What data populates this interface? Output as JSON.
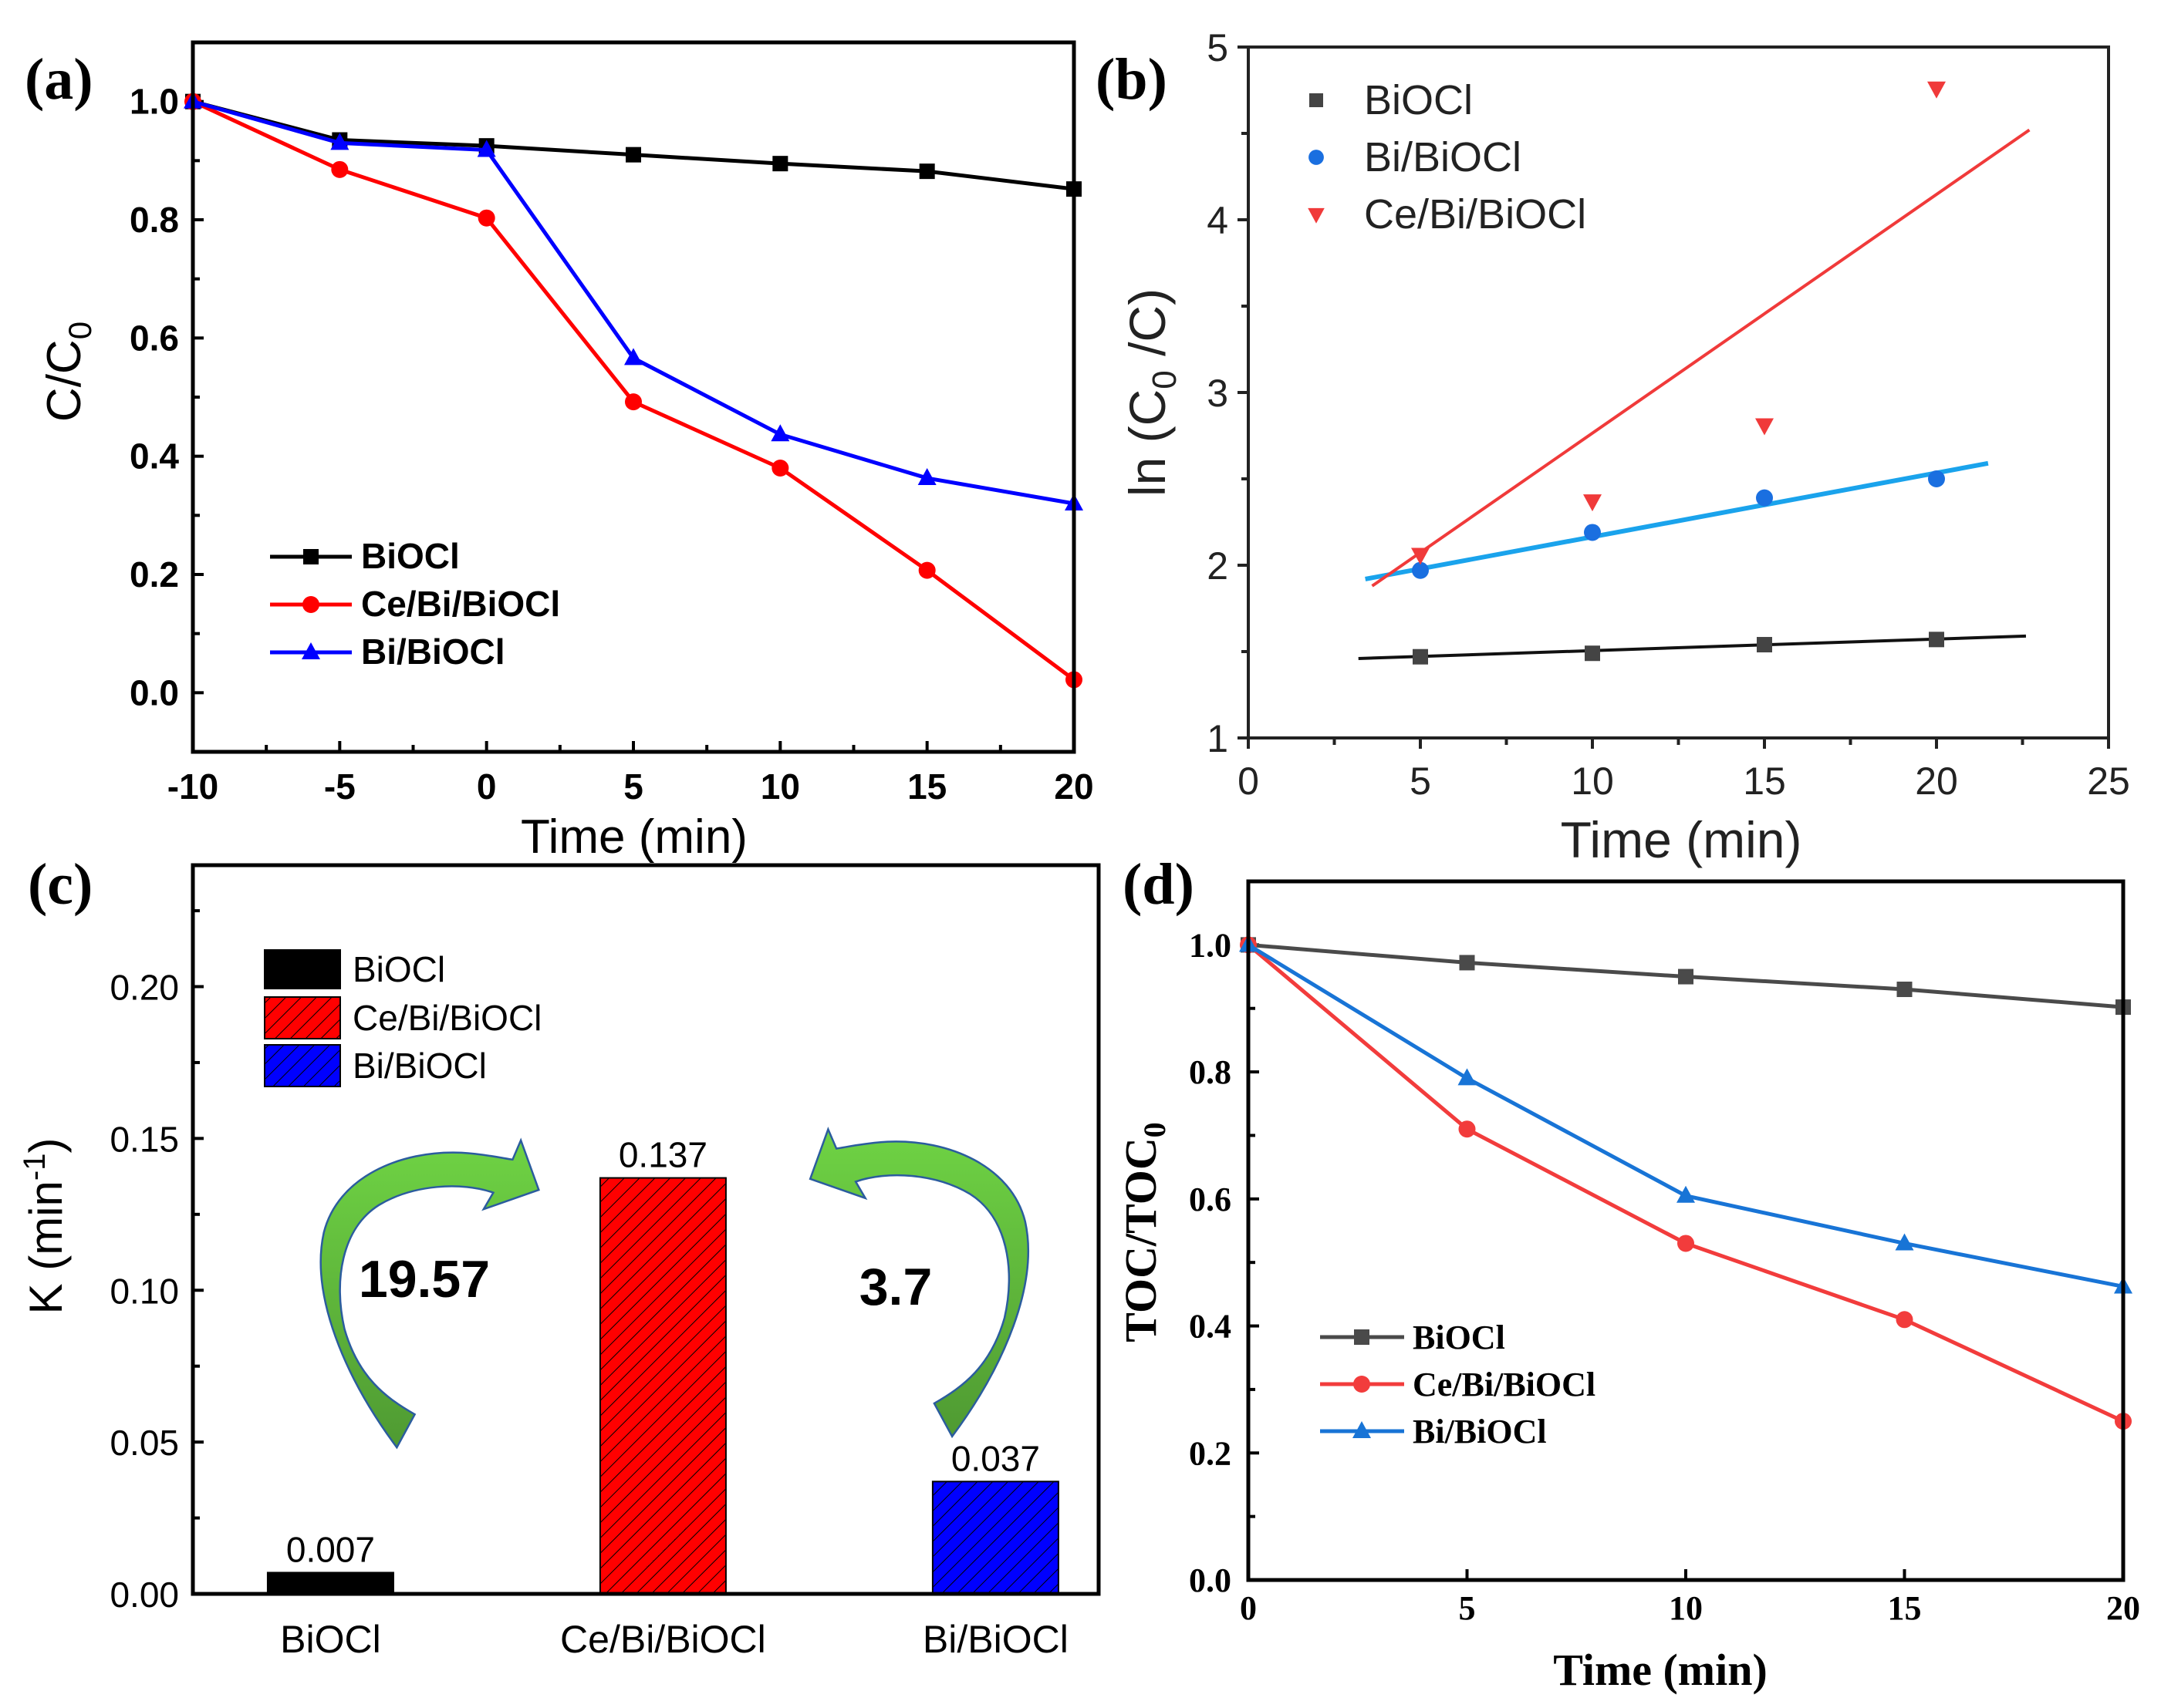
{
  "chart_data": [
    {
      "panel_label": "(a)",
      "type": "line",
      "x": [
        -10,
        -5,
        0,
        5,
        10,
        15,
        20
      ],
      "xlim": [
        -10,
        20
      ],
      "ylim": [
        -0.1,
        1.1
      ],
      "xtick_labels": [
        "-10",
        "-5",
        "0",
        "5",
        "10",
        "15",
        "20"
      ],
      "ytick_labels": [
        "0.0",
        "0.2",
        "0.4",
        "0.6",
        "0.8",
        "1.0"
      ],
      "xlabel": "Time (min)",
      "ylabel": {
        "main": "C/C",
        "sub": "0"
      },
      "legend_position": "lower-left",
      "series": [
        {
          "name": "BiOCl",
          "color": "#000000",
          "marker": "square",
          "values": [
            1.0,
            0.935,
            0.925,
            0.91,
            0.895,
            0.882,
            0.852
          ]
        },
        {
          "name": "Ce/Bi/BiOCl",
          "color": "#ff0000",
          "marker": "circle",
          "values": [
            1.0,
            0.885,
            0.803,
            0.492,
            0.38,
            0.207,
            0.022
          ]
        },
        {
          "name": "Bi/BiOCl",
          "color": "#0000ff",
          "marker": "triangle-up",
          "values": [
            1.0,
            0.93,
            0.918,
            0.566,
            0.437,
            0.363,
            0.32
          ]
        }
      ]
    },
    {
      "panel_label": "(b)",
      "type": "scatter",
      "x": [
        5,
        10,
        15,
        20
      ],
      "xlim": [
        0,
        25
      ],
      "ylim": [
        1,
        5
      ],
      "xtick_labels": [
        "0",
        "5",
        "10",
        "15",
        "20",
        "25"
      ],
      "ytick_labels": [
        "1",
        "2",
        "3",
        "4",
        "5"
      ],
      "xlabel": "Time (min)",
      "ylabel": {
        "pre": "ln (C",
        "sub": "0",
        "post": " /C)"
      },
      "legend_position": "top-left",
      "series": [
        {
          "name": "BiOCl",
          "color": "#444444",
          "marker": "square",
          "values": [
            1.47,
            1.49,
            1.54,
            1.57
          ],
          "fit_color": "#111111",
          "fit": {
            "x": [
              3.2,
              22.6
            ],
            "y": [
              1.46,
              1.59
            ]
          }
        },
        {
          "name": "Bi/BiOCl",
          "color": "#1a6fe0",
          "marker": "circle",
          "values": [
            1.97,
            2.19,
            2.39,
            2.5
          ],
          "fit_color": "#1aa3ec",
          "fit": {
            "x": [
              3.4,
              21.5
            ],
            "y": [
              1.92,
              2.59
            ]
          }
        },
        {
          "name": "Ce/Bi/BiOCl",
          "color": "#f03a3a",
          "marker": "triangle-down",
          "values": [
            2.06,
            2.37,
            2.81,
            4.76
          ],
          "fit_color": "#f03a3a",
          "fit": {
            "x": [
              3.6,
              22.7
            ],
            "y": [
              1.88,
              4.52
            ]
          }
        }
      ]
    },
    {
      "panel_label": "(c)",
      "type": "bar",
      "categories": [
        "BiOCl",
        "Ce/Bi/BiOCl",
        "Bi/BiOCl"
      ],
      "values": [
        0.007,
        0.137,
        0.037
      ],
      "value_labels": [
        "0.007",
        "0.137",
        "0.037"
      ],
      "colors": [
        "#000000",
        "#ff0000",
        "#0000ff"
      ],
      "hatched": [
        false,
        true,
        true
      ],
      "ylim": [
        0,
        0.24
      ],
      "ytick_labels": [
        "0.00",
        "0.05",
        "0.10",
        "0.15",
        "0.20"
      ],
      "ylabel": {
        "pre": "K (min",
        "sup": "-1",
        "post": ")"
      },
      "legend": [
        "BiOCl",
        "Ce/Bi/BiOCl",
        "Bi/BiOCl"
      ],
      "legend_position": "top-left",
      "annotations": [
        {
          "text": "19.57",
          "arrow": "from BiOCl to Ce/Bi/BiOCl"
        },
        {
          "text": "3.7",
          "arrow": "from Bi/BiOCl to Ce/Bi/BiOCl"
        }
      ],
      "arrow_color": "#5cb83a"
    },
    {
      "panel_label": "(d)",
      "type": "line",
      "x": [
        0,
        5,
        10,
        15,
        20
      ],
      "xlim": [
        0,
        20
      ],
      "ylim": [
        0,
        1.1
      ],
      "xtick_labels": [
        "0",
        "5",
        "10",
        "15",
        "20"
      ],
      "ytick_labels": [
        "0.0",
        "0.2",
        "0.4",
        "0.6",
        "0.8",
        "1.0"
      ],
      "xlabel": "Time (min)",
      "ylabel": {
        "main": "TOC/TOC",
        "sub": "0"
      },
      "legend_position": "lower-left",
      "series": [
        {
          "name": "BiOCl",
          "color": "#4a4a4a",
          "marker": "square",
          "values": [
            1.0,
            0.972,
            0.95,
            0.93,
            0.902
          ]
        },
        {
          "name": "Ce/Bi/BiOCl",
          "color": "#f23c3c",
          "marker": "circle",
          "values": [
            1.0,
            0.71,
            0.53,
            0.41,
            0.25
          ]
        },
        {
          "name": "Bi/BiOCl",
          "color": "#1874d6",
          "marker": "triangle-up",
          "values": [
            1.0,
            0.79,
            0.605,
            0.53,
            0.462
          ]
        }
      ]
    }
  ]
}
